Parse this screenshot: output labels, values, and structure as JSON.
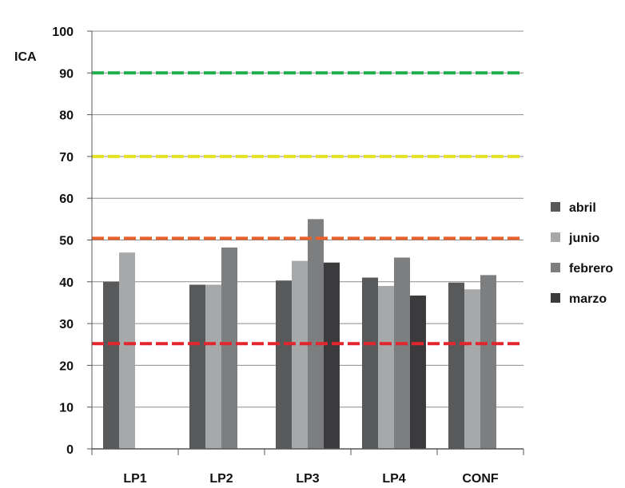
{
  "chart_data": {
    "type": "bar",
    "title": "",
    "xlabel": "",
    "ylabel": "ICA",
    "ylim": [
      0,
      100
    ],
    "yticks": [
      0,
      10,
      20,
      30,
      40,
      50,
      60,
      70,
      80,
      90,
      100
    ],
    "categories": [
      "LP1",
      "LP2",
      "LP3",
      "LP4",
      "CONF"
    ],
    "series": [
      {
        "name": "abril",
        "color": "#58595b",
        "values": [
          40,
          39.3,
          40.3,
          41,
          39.8
        ]
      },
      {
        "name": "junio",
        "color": "#a7a8aa",
        "values": [
          47,
          39.3,
          45,
          39,
          38.2
        ]
      },
      {
        "name": "febrero",
        "color": "#7d7e80",
        "values": [
          null,
          48.2,
          55,
          45.8,
          41.6
        ]
      },
      {
        "name": "marzo",
        "color": "#3b3b3d",
        "values": [
          null,
          null,
          44.6,
          36.7,
          null
        ]
      }
    ],
    "reference_lines": [
      {
        "value": 90,
        "color": "#1fae4b"
      },
      {
        "value": 70,
        "color": "#e3e324"
      },
      {
        "value": 50.4,
        "color": "#e8602a"
      },
      {
        "value": 25.2,
        "color": "#e3262d"
      }
    ],
    "grid": true,
    "legend_position": "right"
  }
}
